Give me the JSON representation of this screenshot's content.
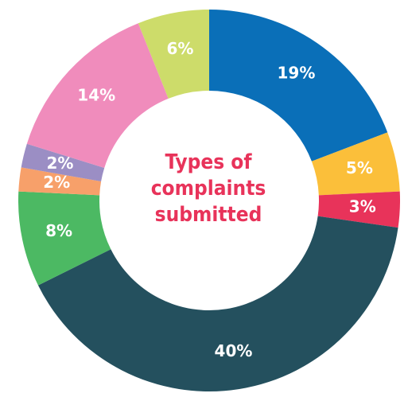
{
  "chart_data": {
    "type": "donut",
    "title": "Types of complaints submitted",
    "values": [
      19,
      5,
      3,
      40,
      8,
      2,
      2,
      14,
      6
    ],
    "value_labels": [
      "19%",
      "5%",
      "3%",
      "40%",
      "8%",
      "2%",
      "2%",
      "14%",
      "6%"
    ],
    "colors": [
      "#0a6fb8",
      "#fbbf3a",
      "#e8335a",
      "#24505e",
      "#4cb963",
      "#f7a06a",
      "#9b8ec4",
      "#f08cbc",
      "#cddc6a"
    ]
  }
}
